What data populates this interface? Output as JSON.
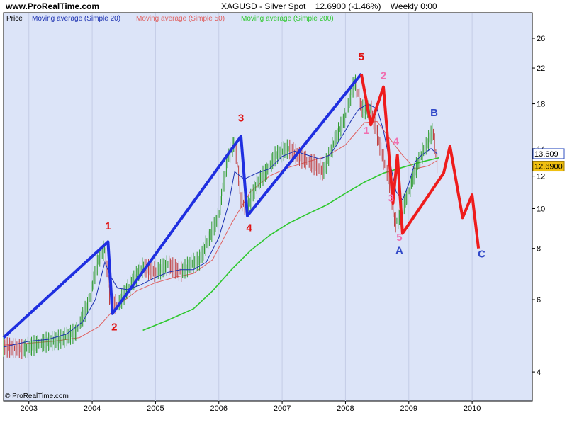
{
  "header": {
    "site": "www.ProRealTime.com",
    "symbol": "XAGUSD - Silver Spot",
    "quote": "12.6900 (-1.46%)",
    "timeframe": "Weekly 0:00"
  },
  "footer": {
    "copyright": "© ProRealTime.com"
  },
  "colors": {
    "background": "#dce4f8",
    "price_up": "#2e9a2e",
    "price_down": "#c04040",
    "ma20": "#1a2fb0",
    "ma50": "#e06060",
    "ma200": "#2ec82e",
    "elliott_impulse": "#1f2fe0",
    "elliott_projection": "#ee1c1c",
    "subwave_labels": "#f070b0",
    "abc_labels": "#3048c8",
    "price_box": "#f0c010",
    "ma20_box_border": "#3050c0"
  },
  "chart_data": {
    "type": "line",
    "title": "XAGUSD - Silver Spot",
    "scale": "log",
    "ylim": [
      3.4,
      30
    ],
    "xlim": [
      2002.6,
      2010.95
    ],
    "x_ticks": [
      2003,
      2004,
      2005,
      2006,
      2007,
      2008,
      2009,
      2010
    ],
    "y_ticks": [
      4,
      6,
      8,
      10,
      12,
      14,
      18,
      22,
      26
    ],
    "legend": [
      "Price",
      "Moving average (Simple 20)",
      "Moving average (Simple 50)",
      "Moving average (Simple 200)"
    ],
    "last_price": 12.69,
    "last_ma20": 13.609,
    "series": [
      {
        "name": "Moving average (Simple 20)",
        "x": [
          2002.6,
          2003.0,
          2003.3,
          2003.6,
          2003.85,
          2004.05,
          2004.2,
          2004.3,
          2004.4,
          2004.55,
          2004.75,
          2005.0,
          2005.2,
          2005.4,
          2005.6,
          2005.8,
          2006.0,
          2006.15,
          2006.25,
          2006.4,
          2006.6,
          2006.8,
          2007.0,
          2007.2,
          2007.4,
          2007.6,
          2007.75,
          2007.85,
          2008.0,
          2008.1,
          2008.2,
          2008.35,
          2008.5,
          2008.6,
          2008.7,
          2008.8,
          2008.9,
          2009.0,
          2009.1,
          2009.2,
          2009.35,
          2009.45
        ],
        "values": [
          4.6,
          4.75,
          4.8,
          4.95,
          5.3,
          6.0,
          7.4,
          6.8,
          6.4,
          6.35,
          6.5,
          6.8,
          7.0,
          7.1,
          7.1,
          7.4,
          8.5,
          10.2,
          12.3,
          11.8,
          12.2,
          12.5,
          13.4,
          13.8,
          13.5,
          13.2,
          13.5,
          14.2,
          15.5,
          16.5,
          17.4,
          18.0,
          17.5,
          15.5,
          13.0,
          11.0,
          10.5,
          11.5,
          13.0,
          13.5,
          14.0,
          13.6
        ]
      },
      {
        "name": "Moving average (Simple 50)",
        "x": [
          2002.6,
          2003.0,
          2003.4,
          2003.8,
          2004.1,
          2004.4,
          2004.7,
          2005.0,
          2005.3,
          2005.6,
          2005.9,
          2006.2,
          2006.5,
          2006.8,
          2007.1,
          2007.4,
          2007.7,
          2008.0,
          2008.3,
          2008.5,
          2008.7,
          2008.9,
          2009.1,
          2009.3,
          2009.45
        ],
        "values": [
          4.65,
          4.7,
          4.75,
          4.85,
          5.15,
          5.8,
          6.3,
          6.6,
          6.8,
          6.95,
          7.5,
          9.2,
          11.0,
          12.0,
          12.6,
          13.0,
          13.4,
          14.3,
          16.2,
          16.3,
          14.8,
          13.5,
          12.5,
          12.7,
          13.1
        ]
      },
      {
        "name": "Moving average (Simple 200)",
        "x": [
          2004.8,
          2005.2,
          2005.6,
          2005.9,
          2006.2,
          2006.5,
          2006.8,
          2007.1,
          2007.4,
          2007.7,
          2008.0,
          2008.3,
          2008.6,
          2008.9,
          2009.2,
          2009.48
        ],
        "values": [
          5.05,
          5.35,
          5.7,
          6.3,
          7.1,
          7.9,
          8.6,
          9.2,
          9.7,
          10.2,
          10.9,
          11.6,
          12.2,
          12.6,
          13.0,
          13.3
        ]
      }
    ],
    "price_path": {
      "x": [
        2002.6,
        2002.9,
        2003.2,
        2003.5,
        2003.75,
        2003.95,
        2004.1,
        2004.2,
        2004.28,
        2004.4,
        2004.6,
        2004.8,
        2005.0,
        2005.2,
        2005.4,
        2005.55,
        2005.7,
        2005.85,
        2006.0,
        2006.15,
        2006.25,
        2006.35,
        2006.45,
        2006.6,
        2006.75,
        2006.9,
        2007.1,
        2007.3,
        2007.5,
        2007.65,
        2007.8,
        2008.0,
        2008.15,
        2008.25,
        2008.4,
        2008.55,
        2008.7,
        2008.78,
        2008.85,
        2009.0,
        2009.15,
        2009.3,
        2009.38,
        2009.45
      ],
      "values": [
        4.6,
        4.55,
        4.7,
        4.8,
        5.0,
        5.9,
        7.5,
        8.0,
        6.0,
        5.8,
        6.5,
        7.2,
        7.0,
        7.3,
        7.0,
        7.3,
        7.5,
        8.5,
        9.6,
        13.4,
        14.5,
        10.5,
        10.0,
        11.5,
        12.3,
        13.5,
        14.0,
        13.3,
        12.8,
        12.3,
        14.2,
        16.8,
        20.5,
        17.5,
        17.5,
        14.0,
        11.5,
        9.2,
        9.5,
        11.0,
        13.0,
        14.5,
        15.5,
        12.7
      ]
    },
    "elliott_impulse_path": {
      "x": [
        2002.6,
        2004.25,
        2004.32,
        2006.35,
        2006.45,
        2008.25
      ],
      "values": [
        4.85,
        8.3,
        5.55,
        15.0,
        9.6,
        21.3
      ]
    },
    "elliott_projection_path": {
      "x": [
        2008.25,
        2008.4,
        2008.6,
        2008.75,
        2008.82,
        2008.9,
        2009.55,
        2009.65,
        2009.85,
        2010.0,
        2010.1
      ],
      "values": [
        21.3,
        16.0,
        19.8,
        10.3,
        13.5,
        8.7,
        12.2,
        14.2,
        9.5,
        10.8,
        8.0
      ]
    },
    "labels": [
      {
        "text": "1",
        "x": 2004.25,
        "y": 8.9,
        "group": "impulse"
      },
      {
        "text": "2",
        "x": 2004.35,
        "y": 5.05,
        "group": "impulse"
      },
      {
        "text": "3",
        "x": 2006.35,
        "y": 16.3,
        "group": "impulse"
      },
      {
        "text": "4",
        "x": 2006.48,
        "y": 8.8,
        "group": "impulse"
      },
      {
        "text": "5",
        "x": 2008.25,
        "y": 23.0,
        "group": "impulse"
      },
      {
        "text": "1",
        "x": 2008.33,
        "y": 15.2,
        "group": "subwave"
      },
      {
        "text": "2",
        "x": 2008.6,
        "y": 20.7,
        "group": "subwave"
      },
      {
        "text": "3",
        "x": 2008.72,
        "y": 10.4,
        "group": "subwave"
      },
      {
        "text": "4",
        "x": 2008.8,
        "y": 14.3,
        "group": "subwave"
      },
      {
        "text": "5",
        "x": 2008.85,
        "y": 8.35,
        "group": "subwave"
      },
      {
        "text": "A",
        "x": 2008.85,
        "y": 7.75,
        "group": "abc"
      },
      {
        "text": "B",
        "x": 2009.4,
        "y": 16.8,
        "group": "abc"
      },
      {
        "text": "C",
        "x": 2010.15,
        "y": 7.6,
        "group": "abc"
      }
    ]
  }
}
